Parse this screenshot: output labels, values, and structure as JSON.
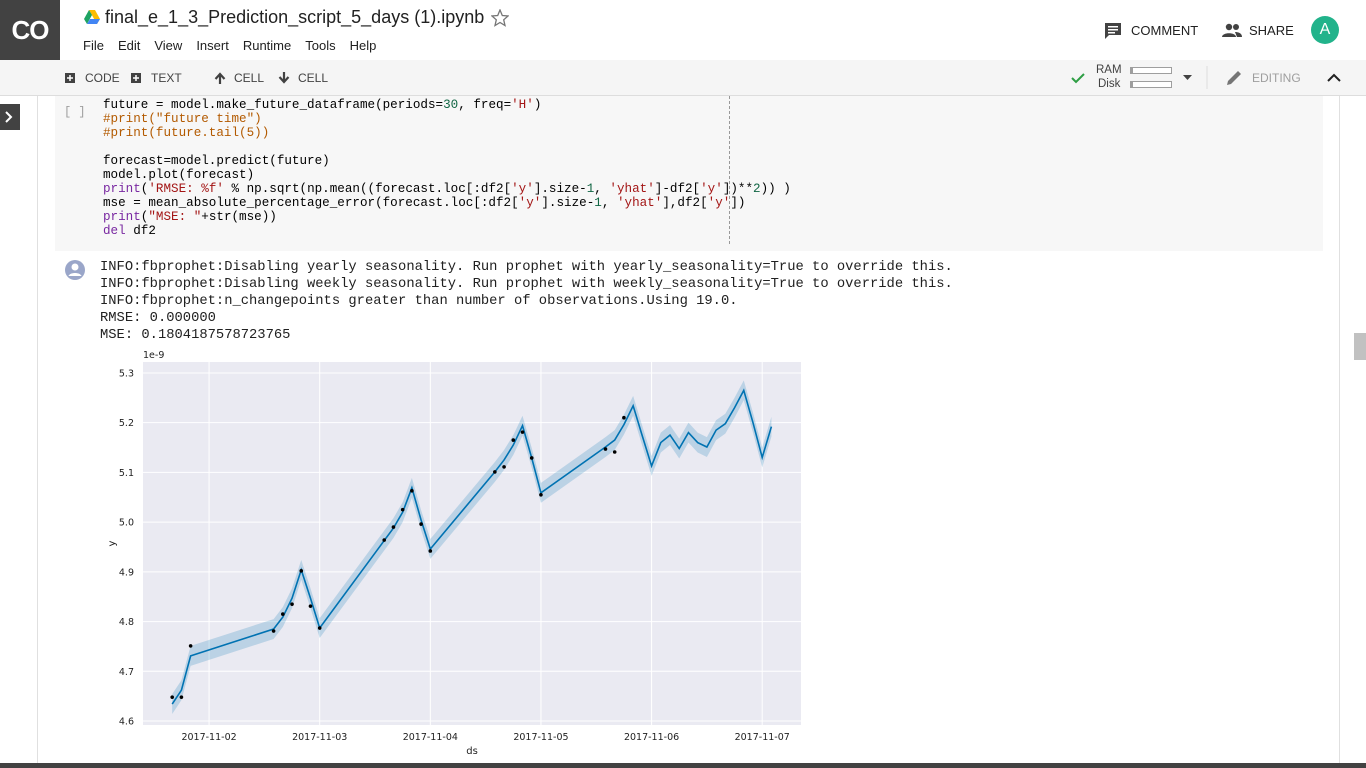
{
  "header": {
    "logo": "CO",
    "title": "final_e_1_3_Prediction_script_5_days (1).ipynb",
    "menu": [
      "File",
      "Edit",
      "View",
      "Insert",
      "Runtime",
      "Tools",
      "Help"
    ],
    "comment": "COMMENT",
    "share": "SHARE",
    "avatar": "A"
  },
  "toolbar": {
    "buttons": [
      "CODE",
      "TEXT",
      "CELL",
      "CELL"
    ],
    "ram": "RAM",
    "disk": "Disk",
    "mode": "EDITING"
  },
  "cell": {
    "run_label": "[ ]",
    "code": [
      [
        {
          "text": "future = model.make_future_dataframe(periods="
        },
        {
          "text": "30",
          "color": "#116644"
        },
        {
          "text": ", freq="
        },
        {
          "text": "'H'",
          "color": "#a31515"
        },
        {
          "text": ")"
        }
      ],
      [
        {
          "text": "#print(\"future time\")",
          "color": "#b35a00"
        }
      ],
      [
        {
          "text": "#print(future.tail(5))",
          "color": "#b35a00"
        }
      ],
      [],
      [
        {
          "text": "forecast=model.predict(future)"
        }
      ],
      [
        {
          "text": "model.plot(forecast)"
        }
      ],
      [
        {
          "text": "print",
          "color": "#7928a1"
        },
        {
          "text": "("
        },
        {
          "text": "'RMSE: %f'",
          "color": "#a31515"
        },
        {
          "text": " % np.sqrt(np.mean((forecast.loc[:df2["
        },
        {
          "text": "'y'",
          "color": "#a31515"
        },
        {
          "text": "].size-"
        },
        {
          "text": "1",
          "color": "#116644"
        },
        {
          "text": ", "
        },
        {
          "text": "'yhat'",
          "color": "#a31515"
        },
        {
          "text": "]-df2["
        },
        {
          "text": "'y'",
          "color": "#a31515"
        },
        {
          "text": "])**"
        },
        {
          "text": "2",
          "color": "#116644"
        },
        {
          "text": ")) )"
        }
      ],
      [
        {
          "text": "mse = mean_absolute_percentage_error(forecast.loc[:df2["
        },
        {
          "text": "'y'",
          "color": "#a31515"
        },
        {
          "text": "].size-"
        },
        {
          "text": "1",
          "color": "#116644"
        },
        {
          "text": ", "
        },
        {
          "text": "'yhat'",
          "color": "#a31515"
        },
        {
          "text": "],df2["
        },
        {
          "text": "'y'",
          "color": "#a31515"
        },
        {
          "text": "])"
        }
      ],
      [
        {
          "text": "print",
          "color": "#7928a1"
        },
        {
          "text": "("
        },
        {
          "text": "\"MSE: \"",
          "color": "#a31515"
        },
        {
          "text": "+str(mse))"
        }
      ],
      [
        {
          "text": "del",
          "color": "#7928a1"
        },
        {
          "text": " df2"
        }
      ]
    ]
  },
  "output": {
    "lines": [
      "INFO:fbprophet:Disabling yearly seasonality. Run prophet with yearly_seasonality=True to override this.",
      "INFO:fbprophet:Disabling weekly seasonality. Run prophet with weekly_seasonality=True to override this.",
      "INFO:fbprophet:n_changepoints greater than number of observations.Using 19.0.",
      "RMSE: 0.000000",
      "MSE: 0.1804187578723765"
    ]
  },
  "chart_data": {
    "type": "line",
    "offset_label": "1e-9",
    "xlabel": "ds",
    "ylabel": "y",
    "xlim": [
      "2017-11-01 09:40",
      "2017-11-07 08:25"
    ],
    "ylim": [
      4.592,
      5.322
    ],
    "xticks": [
      "2017-11-02",
      "2017-11-03",
      "2017-11-04",
      "2017-11-05",
      "2017-11-06",
      "2017-11-07"
    ],
    "yticks": [
      4.6,
      4.7,
      4.8,
      4.9,
      {
        "value": 5,
        "label": "5.0"
      },
      5.1,
      5.2,
      5.3
    ],
    "grid": true,
    "background": "#eaeaf2",
    "points": {
      "color": "#000000",
      "x": [
        "2017-11-01 16:00",
        "2017-11-01 18:00",
        "2017-11-01 20:00",
        "2017-11-02 14:00",
        "2017-11-02 16:00",
        "2017-11-02 18:00",
        "2017-11-02 20:00",
        "2017-11-02 22:00",
        "2017-11-03 00:00",
        "2017-11-03 14:00",
        "2017-11-03 16:00",
        "2017-11-03 18:00",
        "2017-11-03 20:00",
        "2017-11-03 22:00",
        "2017-11-04 00:00",
        "2017-11-04 14:00",
        "2017-11-04 16:00",
        "2017-11-04 18:00",
        "2017-11-04 20:00",
        "2017-11-04 22:00",
        "2017-11-05 00:00",
        "2017-11-05 14:00",
        "2017-11-05 16:00",
        "2017-11-05 18:00"
      ],
      "y": [
        4.648,
        4.648,
        4.751,
        4.781,
        4.815,
        4.835,
        4.902,
        4.831,
        4.787,
        4.964,
        4.99,
        5.025,
        5.063,
        4.996,
        4.942,
        5.101,
        5.111,
        5.165,
        5.181,
        5.129,
        5.055,
        5.147,
        5.141,
        5.21
      ]
    },
    "forecast": {
      "color": "#0072b2",
      "x": [
        "2017-11-01 16:00",
        "2017-11-01 18:00",
        "2017-11-01 20:00",
        "2017-11-02 14:00",
        "2017-11-02 16:00",
        "2017-11-02 18:00",
        "2017-11-02 20:00",
        "2017-11-02 22:00",
        "2017-11-03 00:00",
        "2017-11-03 14:00",
        "2017-11-03 16:00",
        "2017-11-03 18:00",
        "2017-11-03 20:00",
        "2017-11-03 22:00",
        "2017-11-04 00:00",
        "2017-11-04 14:00",
        "2017-11-04 16:00",
        "2017-11-04 18:00",
        "2017-11-04 20:00",
        "2017-11-04 22:00",
        "2017-11-05 00:00",
        "2017-11-05 14:00",
        "2017-11-05 16:00",
        "2017-11-05 18:00",
        "2017-11-05 20:00",
        "2017-11-05 22:00",
        "2017-11-06 00:00",
        "2017-11-06 02:00",
        "2017-11-06 04:00",
        "2017-11-06 06:00",
        "2017-11-06 08:00",
        "2017-11-06 10:00",
        "2017-11-06 12:00",
        "2017-11-06 14:00",
        "2017-11-06 16:00",
        "2017-11-06 18:00",
        "2017-11-06 20:00",
        "2017-11-06 22:00",
        "2017-11-07 00:00",
        "2017-11-07 02:00"
      ],
      "y": [
        4.634,
        4.662,
        4.731,
        4.785,
        4.809,
        4.847,
        4.904,
        4.847,
        4.787,
        4.963,
        4.988,
        5.02,
        5.069,
        5.004,
        4.946,
        5.101,
        5.125,
        5.155,
        5.194,
        5.129,
        5.059,
        5.151,
        5.165,
        5.196,
        5.234,
        5.173,
        5.113,
        5.16,
        5.175,
        5.148,
        5.18,
        5.16,
        5.151,
        5.185,
        5.198,
        5.23,
        5.265,
        5.2,
        5.13,
        5.192
      ],
      "lower": [
        4.614,
        4.642,
        4.711,
        4.765,
        4.789,
        4.827,
        4.884,
        4.827,
        4.767,
        4.943,
        4.968,
        5.0,
        5.049,
        4.984,
        4.926,
        5.081,
        5.105,
        5.135,
        5.174,
        5.109,
        5.039,
        5.131,
        5.145,
        5.176,
        5.214,
        5.153,
        5.093,
        5.14,
        5.155,
        5.128,
        5.16,
        5.14,
        5.131,
        5.165,
        5.178,
        5.21,
        5.245,
        5.18,
        5.11,
        5.172
      ],
      "upper": [
        4.654,
        4.682,
        4.751,
        4.805,
        4.829,
        4.867,
        4.924,
        4.867,
        4.807,
        4.983,
        5.008,
        5.04,
        5.089,
        5.024,
        4.966,
        5.121,
        5.145,
        5.175,
        5.214,
        5.149,
        5.079,
        5.171,
        5.185,
        5.216,
        5.254,
        5.193,
        5.133,
        5.18,
        5.195,
        5.168,
        5.2,
        5.18,
        5.171,
        5.205,
        5.218,
        5.25,
        5.285,
        5.22,
        5.15,
        5.212
      ]
    }
  }
}
